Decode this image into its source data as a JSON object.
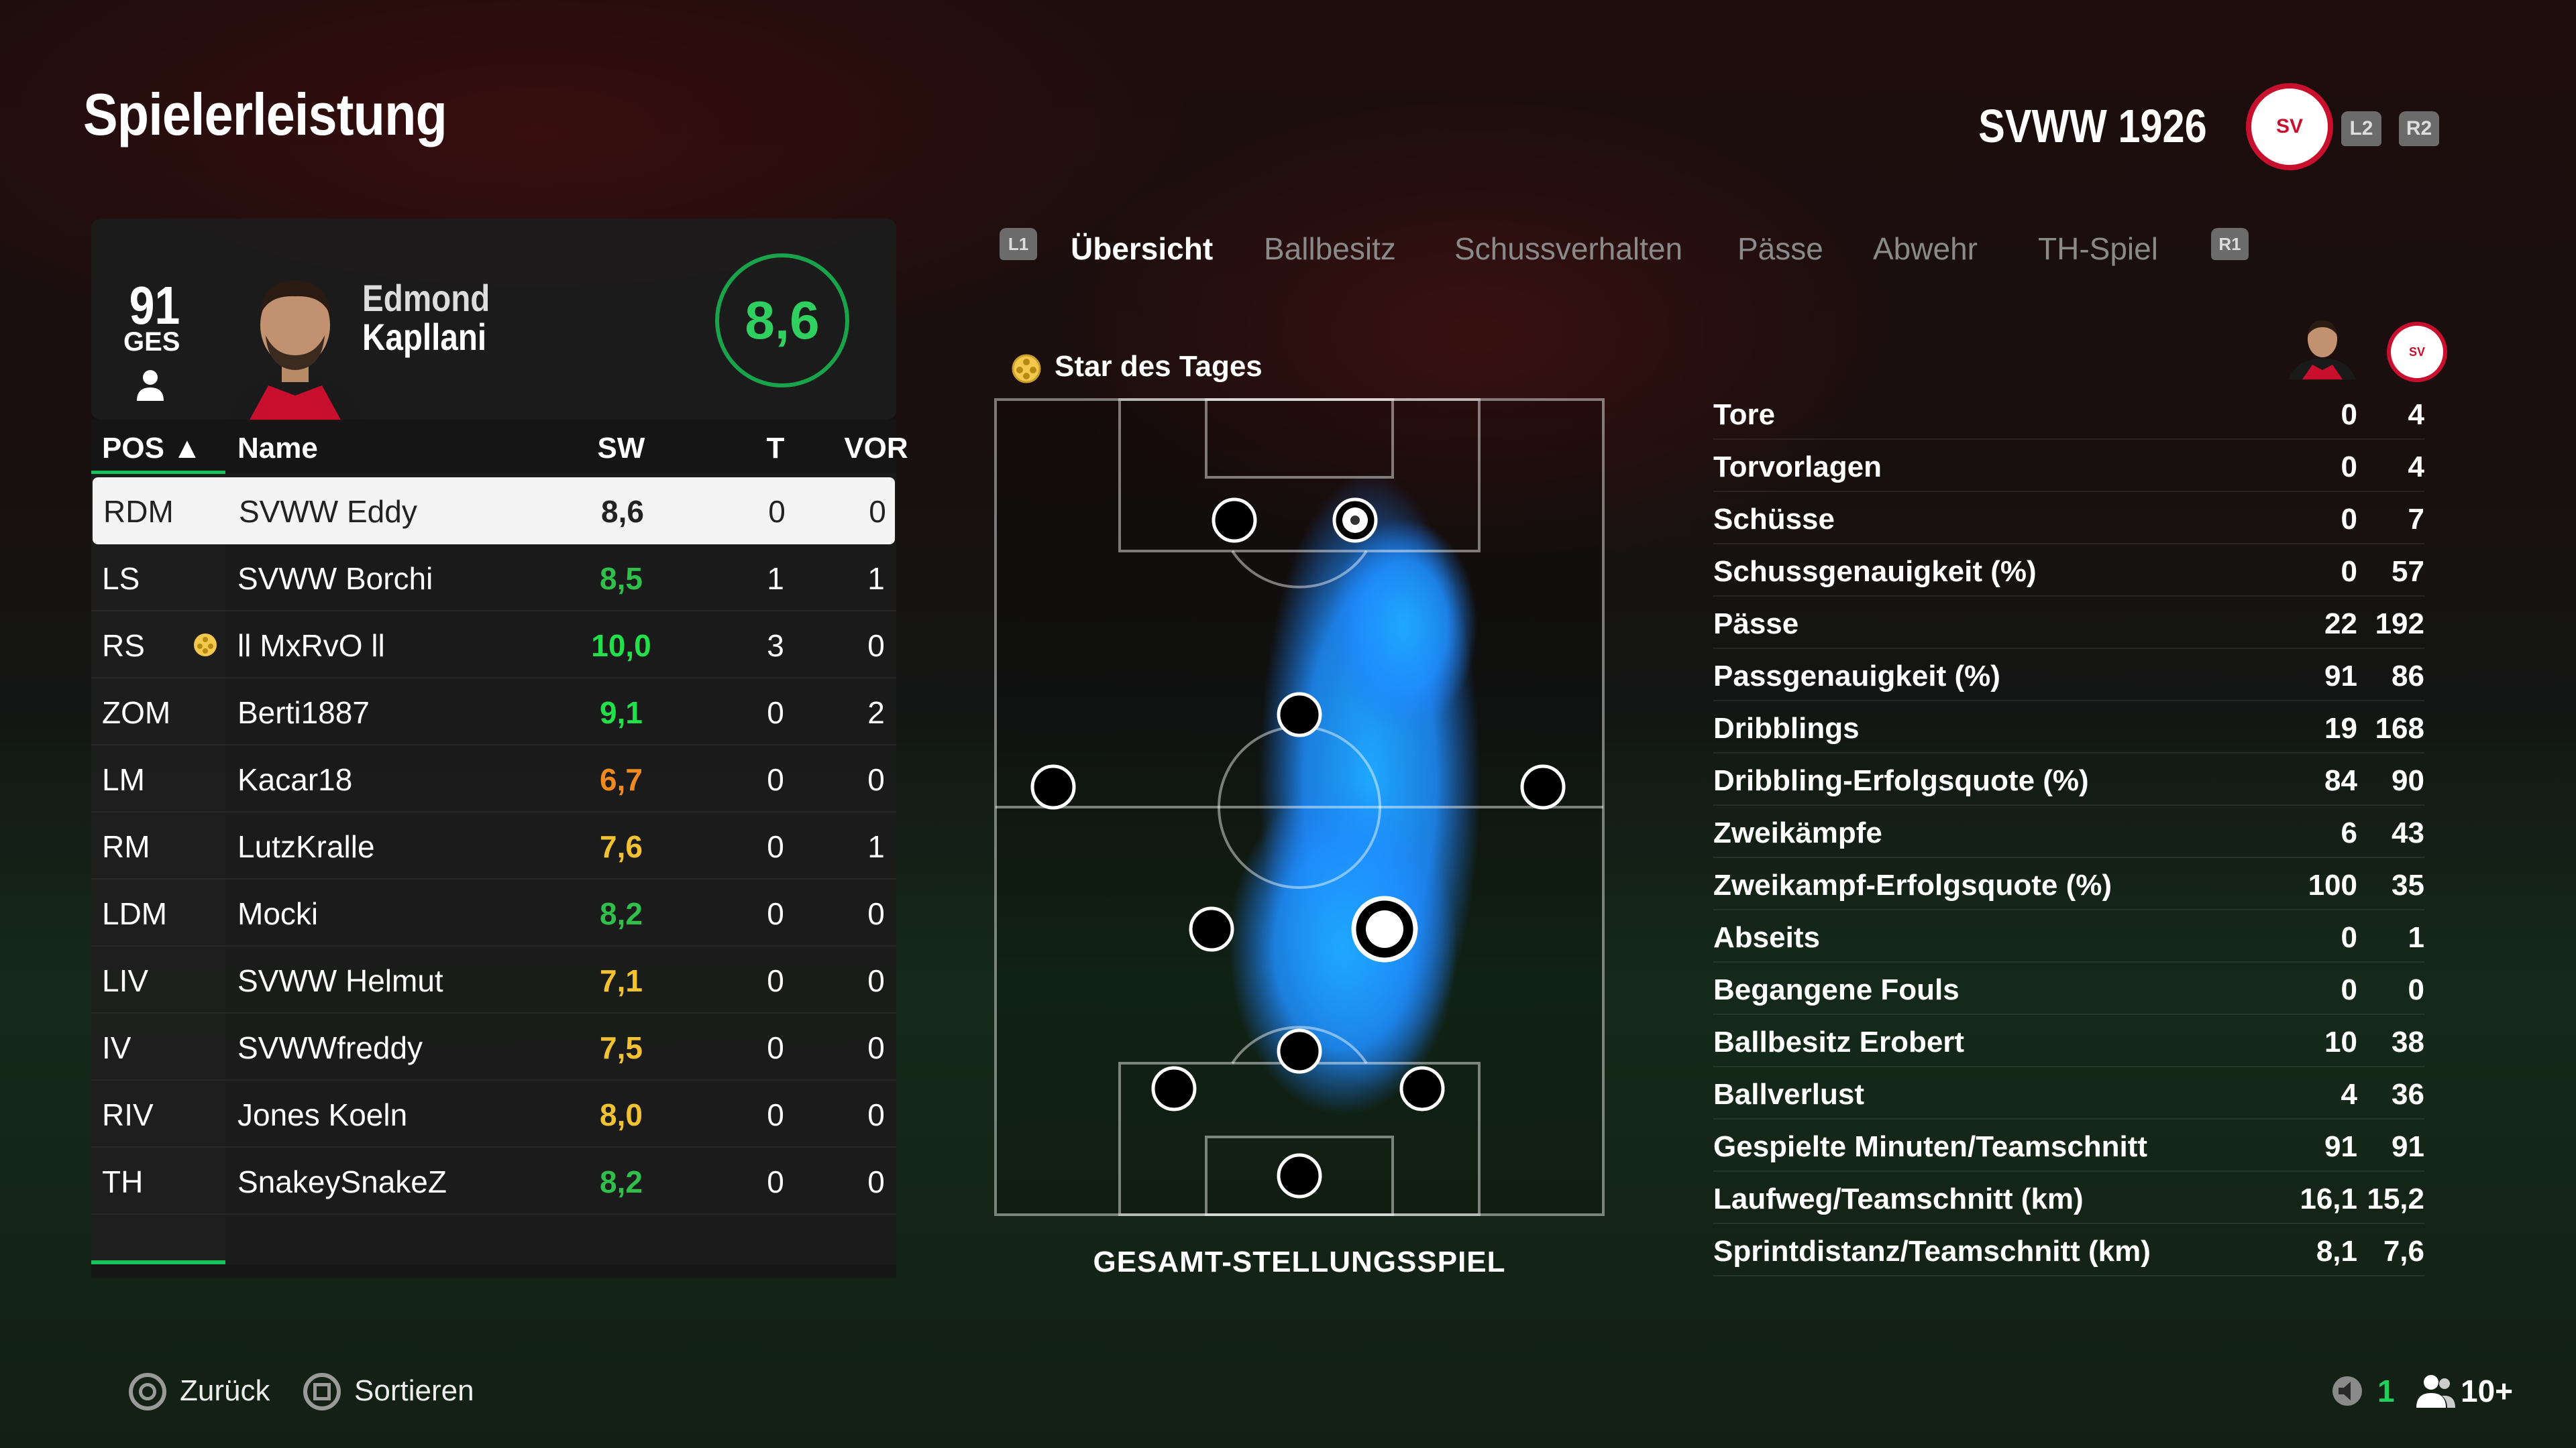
{
  "header": {
    "title": "Spielerleistung",
    "team_name": "SVWW 1926",
    "crest_text": "SV",
    "btn_l2": "L2",
    "btn_r2": "R2"
  },
  "player": {
    "overall": "91",
    "overall_label": "GES",
    "first_name": "Edmond",
    "last_name": "Kapllani",
    "rating": "8,6"
  },
  "table": {
    "headers": {
      "pos": "POS ▲",
      "name": "Name",
      "sw": "SW",
      "t": "T",
      "vor": "VOR"
    },
    "rows": [
      {
        "pos": "RDM",
        "name": "SVWW Eddy",
        "sw": "8,6",
        "t": "0",
        "vor": "0",
        "color": "#222222"
      },
      {
        "pos": "LS",
        "name": "SVWW Borchi",
        "sw": "8,5",
        "t": "1",
        "vor": "1",
        "color": "#2fbf4a"
      },
      {
        "pos": "RS",
        "name": "ll MxRvO ll",
        "sw": "10,0",
        "t": "3",
        "vor": "0",
        "color": "#22e04a"
      },
      {
        "pos": "ZOM",
        "name": "Berti1887",
        "sw": "9,1",
        "t": "0",
        "vor": "2",
        "color": "#22e04a"
      },
      {
        "pos": "LM",
        "name": "Kacar18",
        "sw": "6,7",
        "t": "0",
        "vor": "0",
        "color": "#f08a1c"
      },
      {
        "pos": "RM",
        "name": "LutzKralle",
        "sw": "7,6",
        "t": "0",
        "vor": "1",
        "color": "#f2c230"
      },
      {
        "pos": "LDM",
        "name": "Mocki",
        "sw": "8,2",
        "t": "0",
        "vor": "0",
        "color": "#2fbf4a"
      },
      {
        "pos": "LIV",
        "name": "SVWW Helmut",
        "sw": "7,1",
        "t": "0",
        "vor": "0",
        "color": "#f2c230"
      },
      {
        "pos": "IV",
        "name": "SVWWfreddy",
        "sw": "7,5",
        "t": "0",
        "vor": "0",
        "color": "#f2c230"
      },
      {
        "pos": "RIV",
        "name": "Jones Koeln",
        "sw": "8,0",
        "t": "0",
        "vor": "0",
        "color": "#f2c230"
      },
      {
        "pos": "TH",
        "name": "SnakeySnakeZ",
        "sw": "8,2",
        "t": "0",
        "vor": "0",
        "color": "#2fbf4a"
      }
    ]
  },
  "tabs": {
    "l1": "L1",
    "r1": "R1",
    "items": [
      "Übersicht",
      "Ballbesitz",
      "Schussverhalten",
      "Pässe",
      "Abwehr",
      "TH-Spiel"
    ]
  },
  "pitch": {
    "star_label": "Star des Tages",
    "caption": "GESAMT-STELLUNGSSPIEL"
  },
  "stats": [
    {
      "label": "Tore",
      "player": "0",
      "team": "4"
    },
    {
      "label": "Torvorlagen",
      "player": "0",
      "team": "4"
    },
    {
      "label": "Schüsse",
      "player": "0",
      "team": "7"
    },
    {
      "label": "Schussgenauigkeit (%)",
      "player": "0",
      "team": "57"
    },
    {
      "label": "Pässe",
      "player": "22",
      "team": "192"
    },
    {
      "label": "Passgenauigkeit (%)",
      "player": "91",
      "team": "86"
    },
    {
      "label": "Dribblings",
      "player": "19",
      "team": "168"
    },
    {
      "label": "Dribbling-Erfolgsquote (%)",
      "player": "84",
      "team": "90"
    },
    {
      "label": "Zweikämpfe",
      "player": "6",
      "team": "43"
    },
    {
      "label": "Zweikampf-Erfolgsquote (%)",
      "player": "100",
      "team": "35"
    },
    {
      "label": "Abseits",
      "player": "0",
      "team": "1"
    },
    {
      "label": "Begangene Fouls",
      "player": "0",
      "team": "0"
    },
    {
      "label": "Ballbesitz Erobert",
      "player": "10",
      "team": "38"
    },
    {
      "label": "Ballverlust",
      "player": "4",
      "team": "36"
    },
    {
      "label": "Gespielte Minuten/Teamschnitt",
      "player": "91",
      "team": "91"
    },
    {
      "label": "Laufweg/Teamschnitt (km)",
      "player": "16,1",
      "team": "15,2"
    },
    {
      "label": "Sprintdistanz/Teamschnitt (km)",
      "player": "8,1",
      "team": "7,6"
    }
  ],
  "footer": {
    "back_label": "Zurück",
    "sort_label": "Sortieren",
    "online_count": "1",
    "lobby_count": "10+"
  },
  "icons": {
    "star": "star-of-the-day-icon",
    "voice": "voice-chat-icon",
    "people": "party-members-icon"
  },
  "colors": {
    "accent_green": "#19c25a",
    "heatmap_blue": "#1e9cff",
    "brand_red": "#c8102e"
  }
}
